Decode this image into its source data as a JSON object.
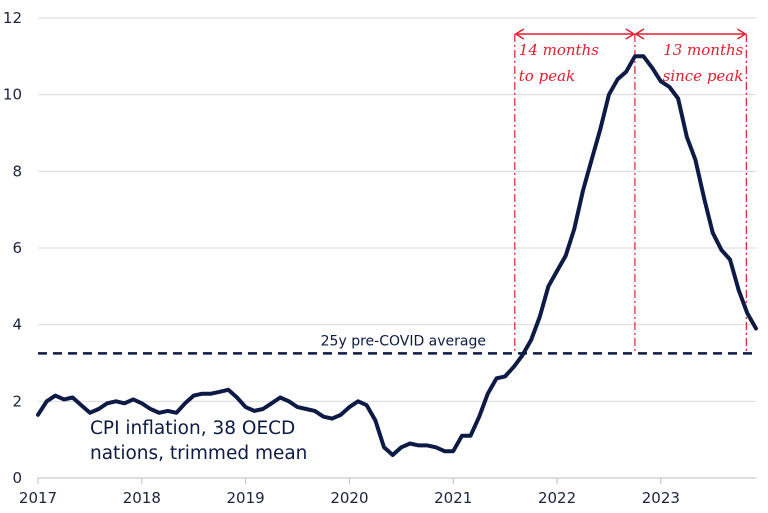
{
  "chart_data": {
    "type": "line",
    "title": "",
    "xlabel": "",
    "ylabel": "",
    "ylim": [
      0,
      12
    ],
    "xlim": [
      "2017-01",
      "2023-12"
    ],
    "yticks": [
      "0",
      "2",
      "4",
      "6",
      "8",
      "10",
      "12"
    ],
    "xticks": [
      "2017",
      "2018",
      "2019",
      "2020",
      "2021",
      "2022",
      "2023"
    ],
    "grid": "horizontal",
    "series": [
      {
        "name": "CPI inflation, 38 OECD nations, trimmed mean",
        "color": "#0d1a45",
        "x": [
          "2017-01",
          "2017-02",
          "2017-03",
          "2017-04",
          "2017-05",
          "2017-06",
          "2017-07",
          "2017-08",
          "2017-09",
          "2017-10",
          "2017-11",
          "2017-12",
          "2018-01",
          "2018-02",
          "2018-03",
          "2018-04",
          "2018-05",
          "2018-06",
          "2018-07",
          "2018-08",
          "2018-09",
          "2018-10",
          "2018-11",
          "2018-12",
          "2019-01",
          "2019-02",
          "2019-03",
          "2019-04",
          "2019-05",
          "2019-06",
          "2019-07",
          "2019-08",
          "2019-09",
          "2019-10",
          "2019-11",
          "2019-12",
          "2020-01",
          "2020-02",
          "2020-03",
          "2020-04",
          "2020-05",
          "2020-06",
          "2020-07",
          "2020-08",
          "2020-09",
          "2020-10",
          "2020-11",
          "2020-12",
          "2021-01",
          "2021-02",
          "2021-03",
          "2021-04",
          "2021-05",
          "2021-06",
          "2021-07",
          "2021-08",
          "2021-09",
          "2021-10",
          "2021-11",
          "2021-12",
          "2022-01",
          "2022-02",
          "2022-03",
          "2022-04",
          "2022-05",
          "2022-06",
          "2022-07",
          "2022-08",
          "2022-09",
          "2022-10",
          "2022-11",
          "2022-12",
          "2023-01",
          "2023-02",
          "2023-03",
          "2023-04",
          "2023-05",
          "2023-06",
          "2023-07",
          "2023-08",
          "2023-09",
          "2023-10",
          "2023-11",
          "2023-12"
        ],
        "values": [
          1.65,
          2.0,
          2.15,
          2.05,
          2.1,
          1.9,
          1.7,
          1.8,
          1.95,
          2.0,
          1.95,
          2.05,
          1.95,
          1.8,
          1.7,
          1.75,
          1.7,
          1.95,
          2.15,
          2.2,
          2.2,
          2.25,
          2.3,
          2.1,
          1.85,
          1.75,
          1.8,
          1.95,
          2.1,
          2.0,
          1.85,
          1.8,
          1.75,
          1.6,
          1.55,
          1.65,
          1.85,
          2.0,
          1.9,
          1.5,
          0.8,
          0.6,
          0.8,
          0.9,
          0.85,
          0.85,
          0.8,
          0.7,
          0.7,
          1.1,
          1.1,
          1.6,
          2.2,
          2.6,
          2.65,
          2.9,
          3.2,
          3.6,
          4.2,
          5.0,
          5.4,
          5.8,
          6.5,
          7.5,
          8.3,
          9.1,
          10.0,
          10.4,
          10.6,
          11.0,
          11.0,
          10.7,
          10.35,
          10.2,
          9.9,
          8.9,
          8.3,
          7.3,
          6.4,
          5.95,
          5.7,
          4.9,
          4.3,
          3.9
        ]
      }
    ],
    "reference_line": {
      "label": "25y pre-COVID average",
      "value": 3.25
    },
    "annotations": [
      {
        "text_line1": "14 months",
        "text_line2": "to peak",
        "from": "2021-08",
        "to": "2022-10"
      },
      {
        "text_line1": "13 months",
        "text_line2": "since peak",
        "from": "2022-10",
        "to": "2023-11"
      }
    ],
    "series_label_line1": "CPI inflation, 38 OECD",
    "series_label_line2": "nations, trimmed mean",
    "colors": {
      "series": "#0d1a45",
      "annotation": "#e0202e",
      "grid": "#d9d9d9"
    }
  }
}
